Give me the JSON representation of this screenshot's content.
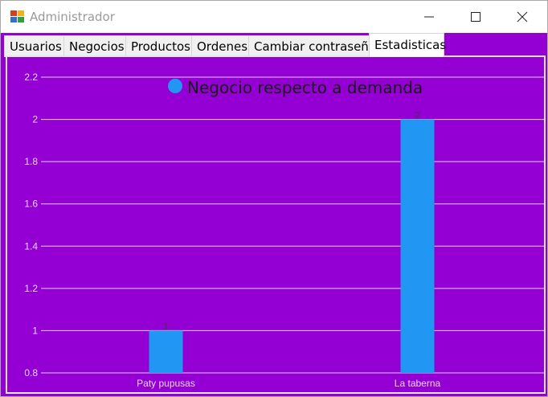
{
  "window": {
    "title": "Administrador",
    "controls": {
      "minimize": "minimize-icon",
      "maximize": "maximize-icon",
      "close": "close-icon"
    }
  },
  "tabs": [
    {
      "label": "Usuarios",
      "active": false
    },
    {
      "label": "Negocios",
      "active": false
    },
    {
      "label": "Productos",
      "active": false
    },
    {
      "label": "Ordenes",
      "active": false
    },
    {
      "label": "Cambiar contraseña",
      "active": false
    },
    {
      "label": "Estadisticas",
      "active": true
    }
  ],
  "colors": {
    "background": "#9400d3",
    "bar": "#2196f3",
    "gridline": "#e0d0f0",
    "tick_label": "#e6d8f5"
  },
  "chart_data": {
    "type": "bar",
    "title": "",
    "xlabel": "",
    "ylabel": "",
    "categories": [
      "Paty pupusas",
      "La taberna"
    ],
    "series": [
      {
        "name": "Negocio respecto a demanda",
        "values": [
          1,
          2
        ]
      }
    ],
    "data_labels": [
      "1",
      "2"
    ],
    "yticks": [
      "0.8",
      "1",
      "1.2",
      "1.4",
      "1.6",
      "1.8",
      "2",
      "2.2"
    ],
    "ylim": [
      0.8,
      2.2
    ],
    "grid": true,
    "legend": "top-center"
  }
}
